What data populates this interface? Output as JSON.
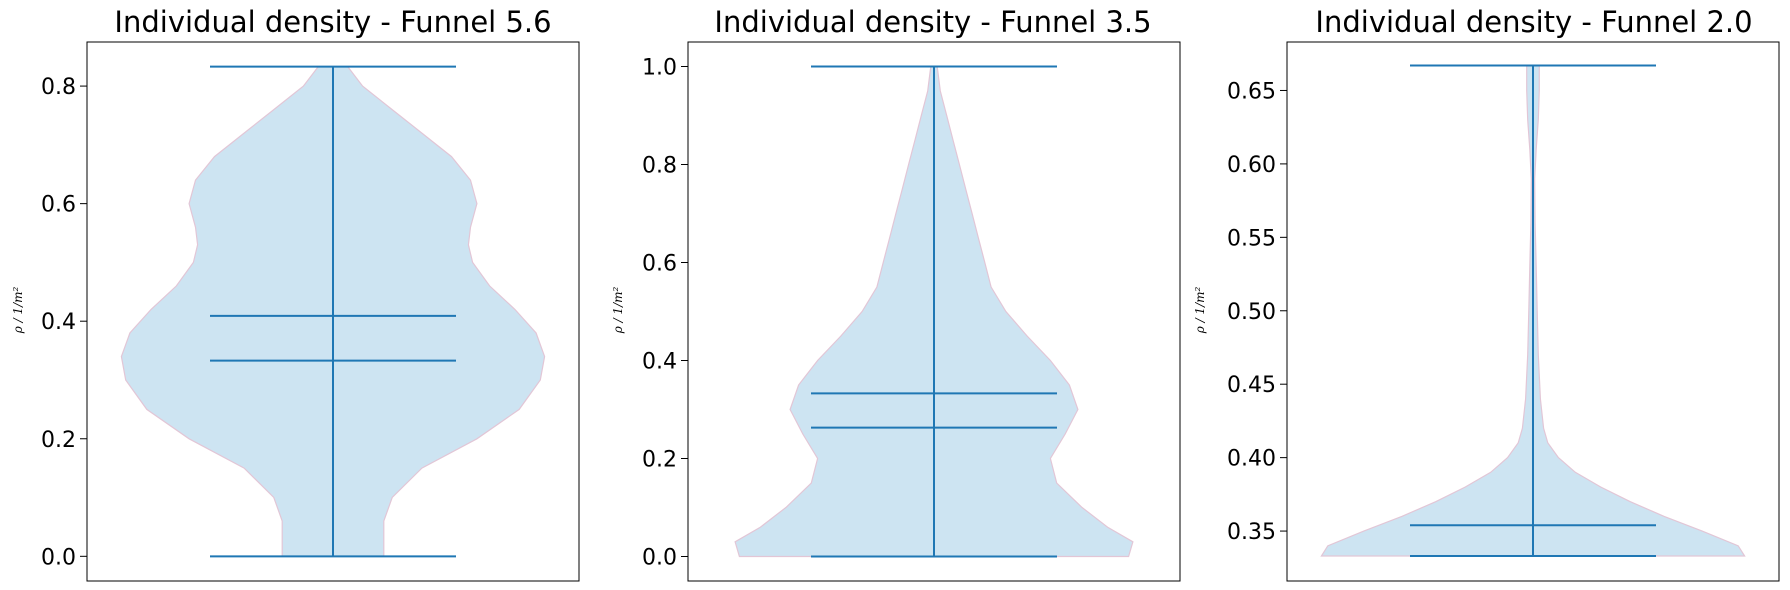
{
  "chart_data": [
    {
      "type": "violin",
      "title": "Individual density - Funnel 5.6",
      "ylabel": "ρ / 1/m²",
      "ylim": [
        -0.042,
        0.875
      ],
      "yticks": [
        0.0,
        0.2,
        0.4,
        0.6,
        0.8
      ],
      "yticklabels": [
        "0.0",
        "0.2",
        "0.4",
        "0.6",
        "0.8"
      ],
      "min": 0.0,
      "max": 0.833,
      "mean": 0.409,
      "median": 0.333,
      "density_profile": [
        [
          0.0,
          0.24
        ],
        [
          0.03,
          0.24
        ],
        [
          0.06,
          0.24
        ],
        [
          0.1,
          0.28
        ],
        [
          0.15,
          0.42
        ],
        [
          0.2,
          0.68
        ],
        [
          0.25,
          0.88
        ],
        [
          0.3,
          0.98
        ],
        [
          0.34,
          1.0
        ],
        [
          0.38,
          0.96
        ],
        [
          0.42,
          0.86
        ],
        [
          0.46,
          0.74
        ],
        [
          0.5,
          0.66
        ],
        [
          0.53,
          0.64
        ],
        [
          0.56,
          0.65
        ],
        [
          0.6,
          0.68
        ],
        [
          0.64,
          0.65
        ],
        [
          0.68,
          0.56
        ],
        [
          0.72,
          0.42
        ],
        [
          0.76,
          0.28
        ],
        [
          0.8,
          0.14
        ],
        [
          0.833,
          0.07
        ]
      ],
      "fill_color": "#cde4f2",
      "edge_color": "#e2c6d6",
      "line_color": "#1f77b4",
      "grid": false
    },
    {
      "type": "violin",
      "title": "Individual density - Funnel 3.5",
      "ylabel": "ρ / 1/m²",
      "ylim": [
        -0.05,
        1.05
      ],
      "yticks": [
        0.0,
        0.2,
        0.4,
        0.6,
        0.8,
        1.0
      ],
      "yticklabels": [
        "0.0",
        "0.2",
        "0.4",
        "0.6",
        "0.8",
        "1.0"
      ],
      "min": 0.0,
      "max": 1.0,
      "mean": 0.333,
      "median": 0.263,
      "density_profile": [
        [
          0.0,
          0.92
        ],
        [
          0.03,
          0.94
        ],
        [
          0.06,
          0.82
        ],
        [
          0.1,
          0.7
        ],
        [
          0.15,
          0.58
        ],
        [
          0.2,
          0.55
        ],
        [
          0.25,
          0.62
        ],
        [
          0.3,
          0.68
        ],
        [
          0.35,
          0.64
        ],
        [
          0.4,
          0.55
        ],
        [
          0.45,
          0.44
        ],
        [
          0.5,
          0.34
        ],
        [
          0.55,
          0.27
        ],
        [
          0.6,
          0.24
        ],
        [
          0.65,
          0.21
        ],
        [
          0.7,
          0.18
        ],
        [
          0.75,
          0.15
        ],
        [
          0.8,
          0.12
        ],
        [
          0.85,
          0.09
        ],
        [
          0.9,
          0.06
        ],
        [
          0.95,
          0.03
        ],
        [
          1.0,
          0.015
        ]
      ],
      "fill_color": "#cde4f2",
      "edge_color": "#e2c6d6",
      "line_color": "#1f77b4",
      "grid": false
    },
    {
      "type": "violin",
      "title": "Individual density - Funnel 2.0",
      "ylabel": "ρ / 1/m²",
      "ylim": [
        0.316,
        0.683
      ],
      "yticks": [
        0.35,
        0.4,
        0.45,
        0.5,
        0.55,
        0.6,
        0.65
      ],
      "yticklabels": [
        "0.35",
        "0.40",
        "0.45",
        "0.50",
        "0.55",
        "0.60",
        "0.65"
      ],
      "min": 0.333,
      "max": 0.667,
      "mean": 0.354,
      "median": 0.333,
      "density_profile": [
        [
          0.333,
          1.0
        ],
        [
          0.34,
          0.97
        ],
        [
          0.35,
          0.8
        ],
        [
          0.36,
          0.62
        ],
        [
          0.37,
          0.46
        ],
        [
          0.38,
          0.32
        ],
        [
          0.39,
          0.2
        ],
        [
          0.4,
          0.12
        ],
        [
          0.41,
          0.07
        ],
        [
          0.42,
          0.05
        ],
        [
          0.44,
          0.035
        ],
        [
          0.47,
          0.025
        ],
        [
          0.5,
          0.02
        ],
        [
          0.53,
          0.015
        ],
        [
          0.56,
          0.01
        ],
        [
          0.59,
          0.008
        ],
        [
          0.61,
          0.015
        ],
        [
          0.63,
          0.025
        ],
        [
          0.65,
          0.03
        ],
        [
          0.667,
          0.03
        ]
      ],
      "fill_color": "#cde4f2",
      "edge_color": "#e2c6d6",
      "line_color": "#1f77b4",
      "grid": false
    }
  ]
}
